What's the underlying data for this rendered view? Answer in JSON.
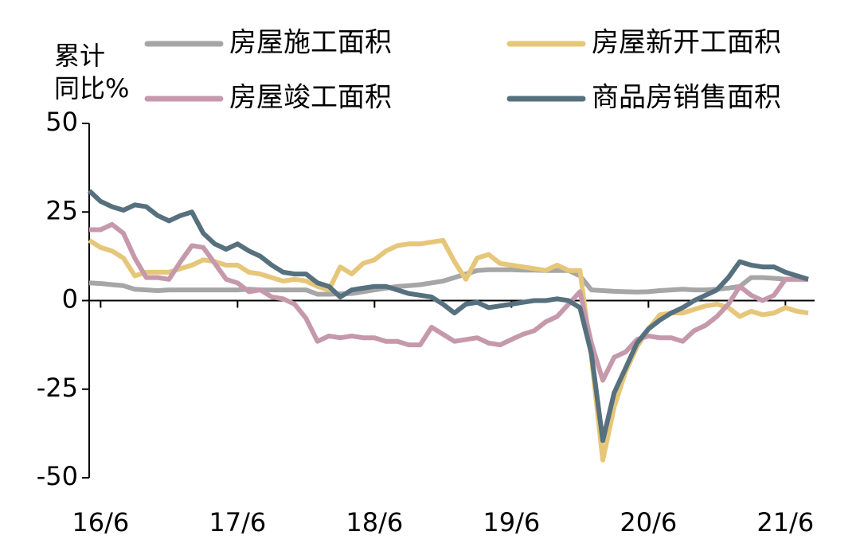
{
  "chart_data": {
    "type": "line",
    "y_label": [
      "累计",
      "同比%"
    ],
    "categories": [
      null,
      "16/6",
      null,
      null,
      null,
      null,
      null,
      null,
      null,
      null,
      null,
      null,
      null,
      "17/6",
      null,
      null,
      null,
      null,
      null,
      null,
      null,
      null,
      null,
      null,
      null,
      "18/6",
      null,
      null,
      null,
      null,
      null,
      null,
      null,
      null,
      null,
      null,
      null,
      "19/6",
      null,
      null,
      null,
      null,
      null,
      null,
      null,
      null,
      null,
      null,
      null,
      "20/6",
      null,
      null,
      null,
      null,
      null,
      null,
      null,
      null,
      null,
      null,
      null,
      "21/6",
      null,
      null
    ],
    "ylim": [
      -50,
      50
    ],
    "yticks": [
      -50,
      -25,
      0,
      25,
      50
    ],
    "series": [
      {
        "name": "房屋施工面积",
        "color": "#a6a6a6",
        "values": [
          5,
          4.8,
          4.5,
          4.2,
          3.2,
          3,
          2.8,
          3,
          3,
          3,
          3,
          3,
          3,
          3,
          3.2,
          3,
          3,
          3,
          3,
          3,
          1.8,
          1.8,
          1.9,
          2,
          2.5,
          3,
          3.5,
          4,
          4.2,
          4.5,
          5,
          5.5,
          6.5,
          7.5,
          8.5,
          8.7,
          8.7,
          8.7,
          8.6,
          8.6,
          8.5,
          8.5,
          8.5,
          7,
          3,
          2.8,
          2.6,
          2.5,
          2.4,
          2.5,
          2.8,
          3,
          3.2,
          3,
          3,
          3.2,
          3.5,
          4,
          6.5,
          6.5,
          6.3,
          6,
          6,
          6
        ]
      },
      {
        "name": "房屋新开工面积",
        "color": "#e6c679",
        "values": [
          17,
          15,
          14,
          12,
          7,
          8,
          8,
          8,
          9,
          10,
          11.5,
          11,
          10,
          10,
          8,
          7.5,
          6.5,
          5.5,
          6,
          5.5,
          4,
          3,
          9.5,
          7.5,
          10.5,
          11.5,
          14,
          15.5,
          16,
          16,
          16.5,
          17,
          11,
          6,
          12,
          13,
          10.5,
          10,
          9.5,
          9,
          8.5,
          10,
          8.5,
          8.5,
          -16,
          -45,
          -30,
          -20,
          -13,
          -8,
          -4,
          -3.5,
          -3.5,
          -2.5,
          -1.5,
          -1,
          -2,
          -4.5,
          -3,
          -4,
          -3.5,
          -2,
          -3,
          -3.5
        ]
      },
      {
        "name": "房屋竣工面积",
        "color": "#c599ab",
        "values": [
          20,
          20,
          21.5,
          19,
          12,
          6.5,
          6.5,
          6,
          11,
          15.5,
          15,
          10.5,
          6,
          5,
          2.5,
          3,
          1,
          0.5,
          -1,
          -5,
          -11.5,
          -10,
          -10.5,
          -10,
          -10.5,
          -10.5,
          -11.5,
          -11.5,
          -12.5,
          -12.5,
          -7.5,
          -9.5,
          -11.5,
          -11,
          -10.5,
          -12,
          -12.5,
          -11,
          -9.5,
          -8.5,
          -6,
          -4.5,
          -1,
          2.5,
          -12,
          -22.5,
          -16,
          -14.5,
          -11,
          -10,
          -10.5,
          -10.5,
          -11.5,
          -8.5,
          -7,
          -4.5,
          -1,
          4,
          1.5,
          0,
          1.5,
          6,
          6,
          6
        ]
      },
      {
        "name": "商品房销售面积",
        "color": "#56707e",
        "values": [
          31,
          28,
          26.5,
          25.5,
          27,
          26.5,
          24,
          22.5,
          24,
          25,
          19,
          16,
          14.5,
          16,
          14,
          12.5,
          10,
          8,
          7.5,
          7.5,
          5,
          4,
          1,
          3,
          3.5,
          4,
          4,
          3,
          2,
          1.5,
          1,
          -1,
          -3.5,
          -1,
          -0.5,
          -2,
          -1.5,
          -1,
          -0.5,
          0,
          0,
          0.5,
          0,
          -2,
          -15,
          -39.5,
          -26,
          -19,
          -12,
          -8,
          -5.5,
          -3.5,
          -2,
          0,
          1.5,
          3,
          6.5,
          11,
          10,
          9.5,
          9.5,
          8,
          7,
          6
        ]
      }
    ]
  }
}
